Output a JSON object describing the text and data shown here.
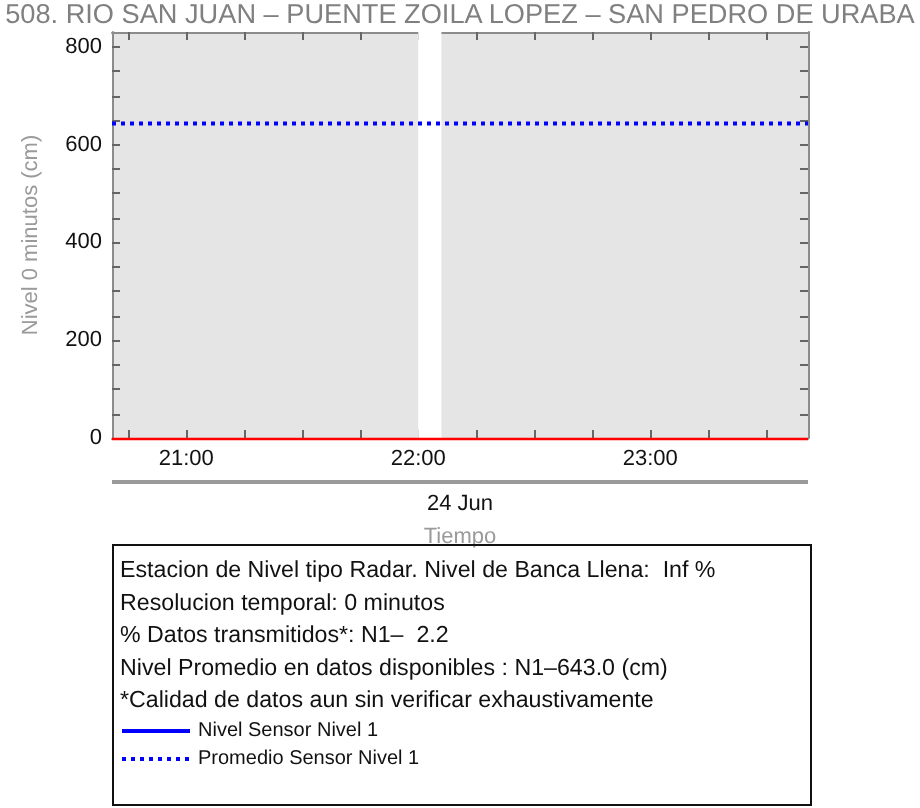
{
  "chart_data": {
    "type": "line",
    "title": "508. RIO SAN JUAN – PUENTE ZOILA LOPEZ – SAN PEDRO DE URABA",
    "xlabel": "Tiempo",
    "ylabel": "Nivel 0 minutos (cm)",
    "annotations": [
      "24 Jun",
      "Estacion de Nivel tipo Radar. Nivel de Banca Llena:  Inf %",
      "Resolucion temporal: 0 minutos",
      "% Datos transmitidos*: N1–  2.2",
      "Nivel Promedio en datos disponibles : N1–643.0 (cm)",
      "*Calidad de datos aun sin verificar exhaustivamente"
    ],
    "series": [
      {
        "name": "Nivel Sensor Nivel 1",
        "color": "#0000ff",
        "line_style": "solid"
      },
      {
        "name": "Promedio Sensor Nivel 1",
        "color": "#0000ff",
        "line_style": "dotted",
        "x": [
          20.68,
          23.68
        ],
        "values": [
          643,
          643
        ]
      }
    ],
    "xlim": [
      20.68,
      23.68
    ],
    "xticks": [
      {
        "value": 20.75,
        "label": null
      },
      {
        "value": 21,
        "label": "21:00"
      },
      {
        "value": 21.25,
        "label": null
      },
      {
        "value": 21.5,
        "label": null
      },
      {
        "value": 21.75,
        "label": null
      },
      {
        "value": 22,
        "label": "22:00"
      },
      {
        "value": 22.25,
        "label": null
      },
      {
        "value": 22.5,
        "label": null
      },
      {
        "value": 22.75,
        "label": null
      },
      {
        "value": 23,
        "label": "23:00"
      },
      {
        "value": 23.25,
        "label": null
      },
      {
        "value": 23.5,
        "label": null
      }
    ],
    "ylim": [
      0,
      830
    ],
    "yticks": [
      0,
      {
        "value": 50,
        "label": null
      },
      {
        "value": 100,
        "label": null
      },
      {
        "value": 150,
        "label": null
      },
      200,
      {
        "value": 250,
        "label": null
      },
      {
        "value": 300,
        "label": null
      },
      {
        "value": 350,
        "label": null
      },
      400,
      {
        "value": 450,
        "label": null
      },
      {
        "value": 500,
        "label": null
      },
      {
        "value": 550,
        "label": null
      },
      600,
      {
        "value": 650,
        "label": null
      },
      {
        "value": 700,
        "label": null
      },
      {
        "value": 750,
        "label": null
      },
      800
    ],
    "ref_lines": [
      {
        "axis": "y",
        "value": 0,
        "color": "#ff0000"
      }
    ],
    "bands": [
      {
        "axis": "x",
        "from": 22.0,
        "to": 22.1,
        "color": "#ffffff"
      }
    ],
    "legend": "bottom"
  }
}
